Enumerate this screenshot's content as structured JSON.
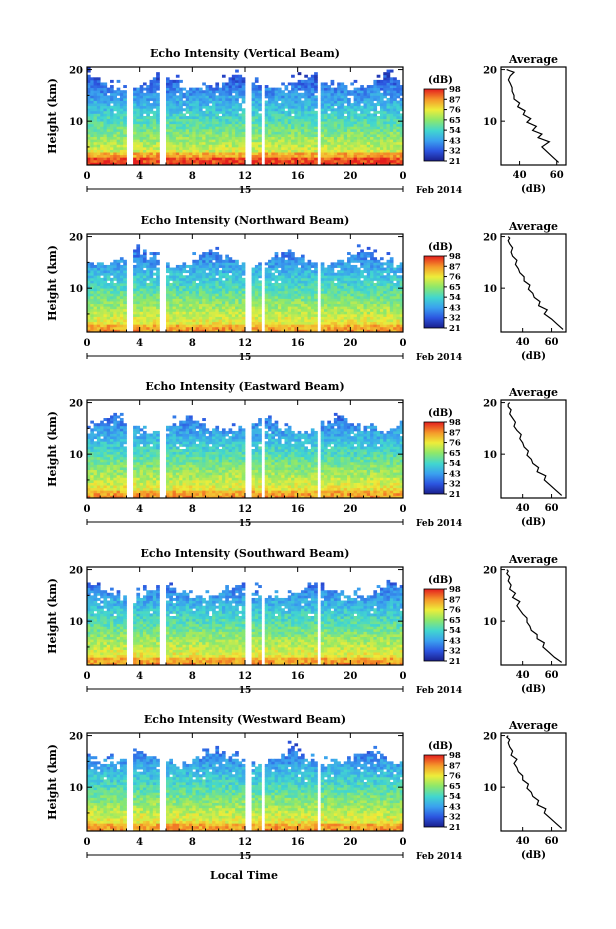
{
  "figure": {
    "xlabel": "Local Time",
    "date_label": "Feb 2014",
    "day_label": "15"
  },
  "chart_data": [
    {
      "type": "heatmap",
      "title": "Echo Intensity (Vertical Beam)",
      "ylabel": "Height (km)",
      "x_ticks": [
        "0",
        "4",
        "8",
        "12",
        "16",
        "20",
        "0"
      ],
      "y_ticks": [
        "10",
        "20"
      ],
      "xlim": [
        0,
        24
      ],
      "ylim": [
        1.5,
        20.5
      ],
      "colorbar": {
        "unit": "(dB)",
        "ticks": [
          "21",
          "32",
          "43",
          "54",
          "65",
          "76",
          "87",
          "98"
        ]
      },
      "data_gaps_hours": [
        [
          3.0,
          3.4
        ],
        [
          5.5,
          5.9
        ],
        [
          12.1,
          12.5
        ],
        [
          13.2,
          13.6
        ],
        [
          17.4,
          17.8
        ]
      ],
      "average_profile": {
        "title": "Average",
        "xlabel": "(dB)",
        "x_ticks": [
          "40",
          "60"
        ],
        "y_ticks": [
          "10",
          "20"
        ],
        "xlim": [
          30,
          65
        ],
        "ylim": [
          1.5,
          20.5
        ],
        "x_db": [
          61,
          58,
          55,
          52,
          56,
          50,
          52,
          47,
          49,
          44,
          46,
          42,
          43,
          39,
          40,
          37,
          37,
          36,
          36,
          35,
          34,
          35,
          37,
          33
        ],
        "y_km": [
          2,
          3,
          4,
          5,
          6,
          6.8,
          7.5,
          8.2,
          9,
          9.8,
          10.5,
          11.3,
          12,
          12.8,
          13.5,
          14.3,
          15,
          15.8,
          16.5,
          17.3,
          18,
          18.8,
          19.5,
          20
        ]
      }
    },
    {
      "type": "heatmap",
      "title": "Echo Intensity (Northward Beam)",
      "ylabel": "Height (km)",
      "x_ticks": [
        "0",
        "4",
        "8",
        "12",
        "16",
        "20",
        "0"
      ],
      "y_ticks": [
        "10",
        "20"
      ],
      "xlim": [
        0,
        24
      ],
      "ylim": [
        1.5,
        20.5
      ],
      "colorbar": {
        "unit": "(dB)",
        "ticks": [
          "21",
          "32",
          "43",
          "54",
          "65",
          "76",
          "87",
          "98"
        ]
      },
      "data_gaps_hours": [
        [
          3.0,
          3.4
        ],
        [
          5.5,
          5.9
        ],
        [
          12.1,
          12.5
        ],
        [
          13.2,
          13.6
        ],
        [
          17.4,
          17.8
        ]
      ],
      "average_profile": {
        "title": "Average",
        "xlabel": "(dB)",
        "x_ticks": [
          "40",
          "60"
        ],
        "y_ticks": [
          "10",
          "20"
        ],
        "xlim": [
          25,
          70
        ],
        "ylim": [
          1.5,
          20.5
        ],
        "x_db": [
          68,
          64,
          60,
          55,
          57,
          51,
          52,
          48,
          47,
          44,
          45,
          41,
          41,
          38,
          37,
          35,
          36,
          33,
          32,
          33,
          31,
          30,
          31,
          30
        ],
        "y_km": [
          2,
          3,
          4,
          5,
          5.8,
          6.6,
          7.4,
          8.2,
          9,
          9.8,
          10.6,
          11.4,
          12.2,
          13,
          13.8,
          14.6,
          15.4,
          16.2,
          17,
          17.8,
          18.6,
          19.2,
          19.7,
          20
        ]
      }
    },
    {
      "type": "heatmap",
      "title": "Echo Intensity (Eastward Beam)",
      "ylabel": "Height (km)",
      "x_ticks": [
        "0",
        "4",
        "8",
        "12",
        "16",
        "20",
        "0"
      ],
      "y_ticks": [
        "10",
        "20"
      ],
      "xlim": [
        0,
        24
      ],
      "ylim": [
        1.5,
        20.5
      ],
      "colorbar": {
        "unit": "(dB)",
        "ticks": [
          "21",
          "32",
          "43",
          "54",
          "65",
          "76",
          "87",
          "98"
        ]
      },
      "data_gaps_hours": [
        [
          3.0,
          3.4
        ],
        [
          5.5,
          5.9
        ],
        [
          12.1,
          12.5
        ],
        [
          13.2,
          13.6
        ],
        [
          17.4,
          17.8
        ]
      ],
      "average_profile": {
        "title": "Average",
        "xlabel": "(dB)",
        "x_ticks": [
          "40",
          "60"
        ],
        "y_ticks": [
          "10",
          "20"
        ],
        "xlim": [
          25,
          70
        ],
        "ylim": [
          1.5,
          20.5
        ],
        "x_db": [
          67,
          63,
          59,
          55,
          56,
          50,
          51,
          47,
          46,
          43,
          44,
          41,
          40,
          38,
          39,
          36,
          34,
          35,
          33,
          31,
          32,
          30,
          30,
          31
        ],
        "y_km": [
          2,
          3,
          4,
          5,
          5.8,
          6.6,
          7.4,
          8.2,
          9,
          9.8,
          10.6,
          11.4,
          12.2,
          13,
          13.8,
          14.6,
          15.4,
          16.2,
          17,
          17.8,
          18.6,
          19.2,
          19.7,
          20
        ]
      }
    },
    {
      "type": "heatmap",
      "title": "Echo Intensity (Southward Beam)",
      "ylabel": "Height (km)",
      "x_ticks": [
        "0",
        "4",
        "8",
        "12",
        "16",
        "20",
        "0"
      ],
      "y_ticks": [
        "10",
        "20"
      ],
      "xlim": [
        0,
        24
      ],
      "ylim": [
        1.5,
        20.5
      ],
      "colorbar": {
        "unit": "(dB)",
        "ticks": [
          "21",
          "32",
          "43",
          "54",
          "65",
          "76",
          "87",
          "98"
        ]
      },
      "data_gaps_hours": [
        [
          3.0,
          3.4
        ],
        [
          5.5,
          5.9
        ],
        [
          12.1,
          12.5
        ],
        [
          13.2,
          13.6
        ],
        [
          17.4,
          17.8
        ]
      ],
      "average_profile": {
        "title": "Average",
        "xlabel": "(dB)",
        "x_ticks": [
          "40",
          "60"
        ],
        "y_ticks": [
          "10",
          "20"
        ],
        "xlim": [
          25,
          70
        ],
        "ylim": [
          1.5,
          20.5
        ],
        "x_db": [
          67,
          62,
          58,
          54,
          55,
          50,
          50,
          46,
          45,
          43,
          43,
          40,
          38,
          36,
          38,
          33,
          35,
          31,
          32,
          30,
          31,
          29,
          30,
          29
        ],
        "y_km": [
          2,
          3,
          4,
          5,
          5.8,
          6.6,
          7.4,
          8.2,
          9,
          9.8,
          10.6,
          11.4,
          12.2,
          13,
          13.8,
          14.6,
          15.4,
          16.2,
          17,
          17.8,
          18.6,
          19.2,
          19.7,
          20
        ]
      }
    },
    {
      "type": "heatmap",
      "title": "Echo Intensity (Westward Beam)",
      "ylabel": "Height (km)",
      "x_ticks": [
        "0",
        "4",
        "8",
        "12",
        "16",
        "20",
        "0"
      ],
      "y_ticks": [
        "10",
        "20"
      ],
      "xlim": [
        0,
        24
      ],
      "ylim": [
        1.5,
        20.5
      ],
      "colorbar": {
        "unit": "(dB)",
        "ticks": [
          "21",
          "32",
          "43",
          "54",
          "65",
          "76",
          "87",
          "98"
        ]
      },
      "data_gaps_hours": [
        [
          3.0,
          3.4
        ],
        [
          5.5,
          5.9
        ],
        [
          12.1,
          12.5
        ],
        [
          13.2,
          13.6
        ],
        [
          17.4,
          17.8
        ]
      ],
      "average_profile": {
        "title": "Average",
        "xlabel": "(dB)",
        "x_ticks": [
          "40",
          "60"
        ],
        "y_ticks": [
          "10",
          "20"
        ],
        "xlim": [
          25,
          70
        ],
        "ylim": [
          1.5,
          20.5
        ],
        "x_db": [
          67,
          63,
          59,
          55,
          56,
          50,
          51,
          47,
          46,
          43,
          44,
          40,
          40,
          37,
          36,
          34,
          36,
          32,
          33,
          31,
          30,
          31,
          29,
          30
        ],
        "y_km": [
          2,
          3,
          4,
          5,
          5.8,
          6.6,
          7.4,
          8.2,
          9,
          9.8,
          10.6,
          11.4,
          12.2,
          13,
          13.8,
          14.6,
          15.4,
          16.2,
          17,
          17.8,
          18.6,
          19.2,
          19.7,
          20
        ]
      }
    }
  ]
}
